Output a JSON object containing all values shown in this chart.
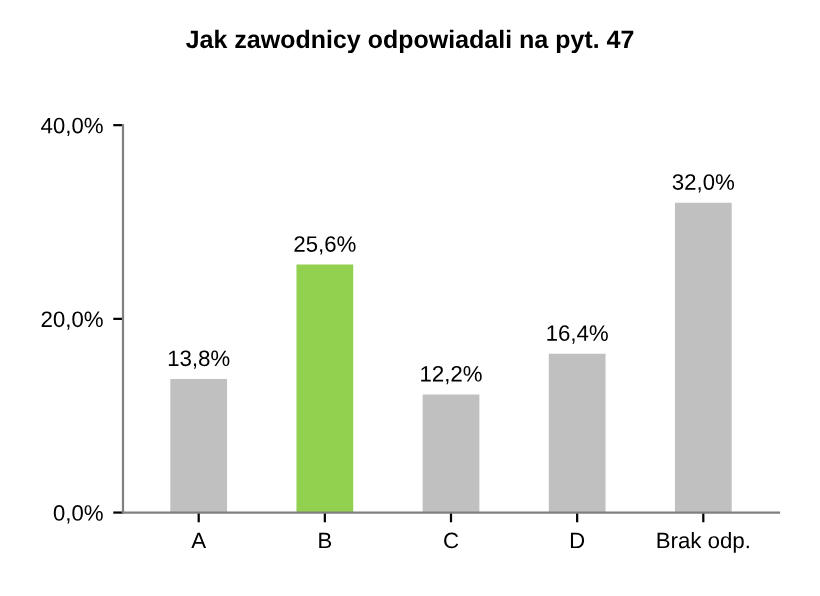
{
  "chart_data": {
    "type": "bar",
    "title": "Jak zawodnicy odpowiadali na pyt. 47",
    "categories": [
      "A",
      "B",
      "C",
      "D",
      "Brak odp."
    ],
    "values": [
      13.8,
      25.6,
      12.2,
      16.4,
      32.0
    ],
    "colors": [
      "#c0c0c0",
      "#92d050",
      "#c0c0c0",
      "#c0c0c0",
      "#c0c0c0"
    ],
    "value_labels": [
      "13,8%",
      "25,6%",
      "12,2%",
      "16,4%",
      "32,0%"
    ],
    "ylim": [
      0,
      40
    ],
    "yticks": [
      {
        "value": 0,
        "label": "0,0%"
      },
      {
        "value": 20,
        "label": "20,0%"
      },
      {
        "value": 40,
        "label": "40,0%"
      }
    ],
    "grid": false,
    "legend": false
  }
}
